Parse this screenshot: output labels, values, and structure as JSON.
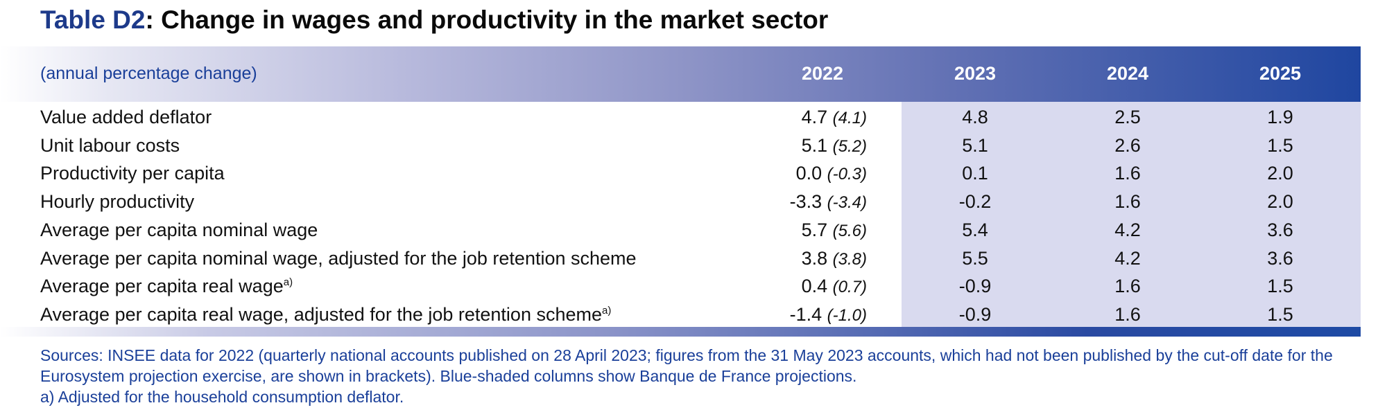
{
  "title": {
    "tag": "Table D2",
    "rest": ": Change in wages and productivity in the market sector"
  },
  "header": {
    "unit_label": "(annual percentage change)",
    "years": [
      "2022",
      "2023",
      "2024",
      "2025"
    ]
  },
  "rows": [
    {
      "label": "Value added deflator",
      "sup": "",
      "v2022": "4.7",
      "v2022_paren": "(4.1)",
      "v2023": "4.8",
      "v2024": "2.5",
      "v2025": "1.9"
    },
    {
      "label": "Unit labour costs",
      "sup": "",
      "v2022": "5.1",
      "v2022_paren": "(5.2)",
      "v2023": "5.1",
      "v2024": "2.6",
      "v2025": "1.5"
    },
    {
      "label": "Productivity per capita",
      "sup": "",
      "v2022": "0.0",
      "v2022_paren": "(-0.3)",
      "v2023": "0.1",
      "v2024": "1.6",
      "v2025": "2.0"
    },
    {
      "label": "Hourly productivity",
      "sup": "",
      "v2022": "-3.3",
      "v2022_paren": "(-3.4)",
      "v2023": "-0.2",
      "v2024": "1.6",
      "v2025": "2.0"
    },
    {
      "label": "Average per capita nominal wage",
      "sup": "",
      "v2022": "5.7",
      "v2022_paren": "(5.6)",
      "v2023": "5.4",
      "v2024": "4.2",
      "v2025": "3.6"
    },
    {
      "label": "Average per capita nominal wage, adjusted for the job retention scheme",
      "sup": "",
      "v2022": "3.8",
      "v2022_paren": "(3.8)",
      "v2023": "5.5",
      "v2024": "4.2",
      "v2025": "3.6"
    },
    {
      "label": "Average per capita real wage",
      "sup": "a)",
      "v2022": "0.4",
      "v2022_paren": "(0.7)",
      "v2023": "-0.9",
      "v2024": "1.6",
      "v2025": "1.5"
    },
    {
      "label": "Average per capita real wage, adjusted for the job retention scheme",
      "sup": "a)",
      "v2022": "-1.4",
      "v2022_paren": "(-1.0)",
      "v2023": "-0.9",
      "v2024": "1.6",
      "v2025": "1.5"
    }
  ],
  "notes": {
    "sources": "Sources: INSEE data for 2022 (quarterly national accounts published on 28 April 2023; figures from the 31 May 2023 accounts, which had not been published by the cut-off date for the Eurosystem projection exercise, are shown in brackets). Blue-shaded columns show Banque de France projections.",
    "footnote": "a)  Adjusted for the household consumption deflator."
  },
  "colors": {
    "title_tag": "#1d3a8a",
    "header_dark": "#1f46a0",
    "projection_shade": "#d9daef",
    "notes_text": "#1a3f99"
  }
}
